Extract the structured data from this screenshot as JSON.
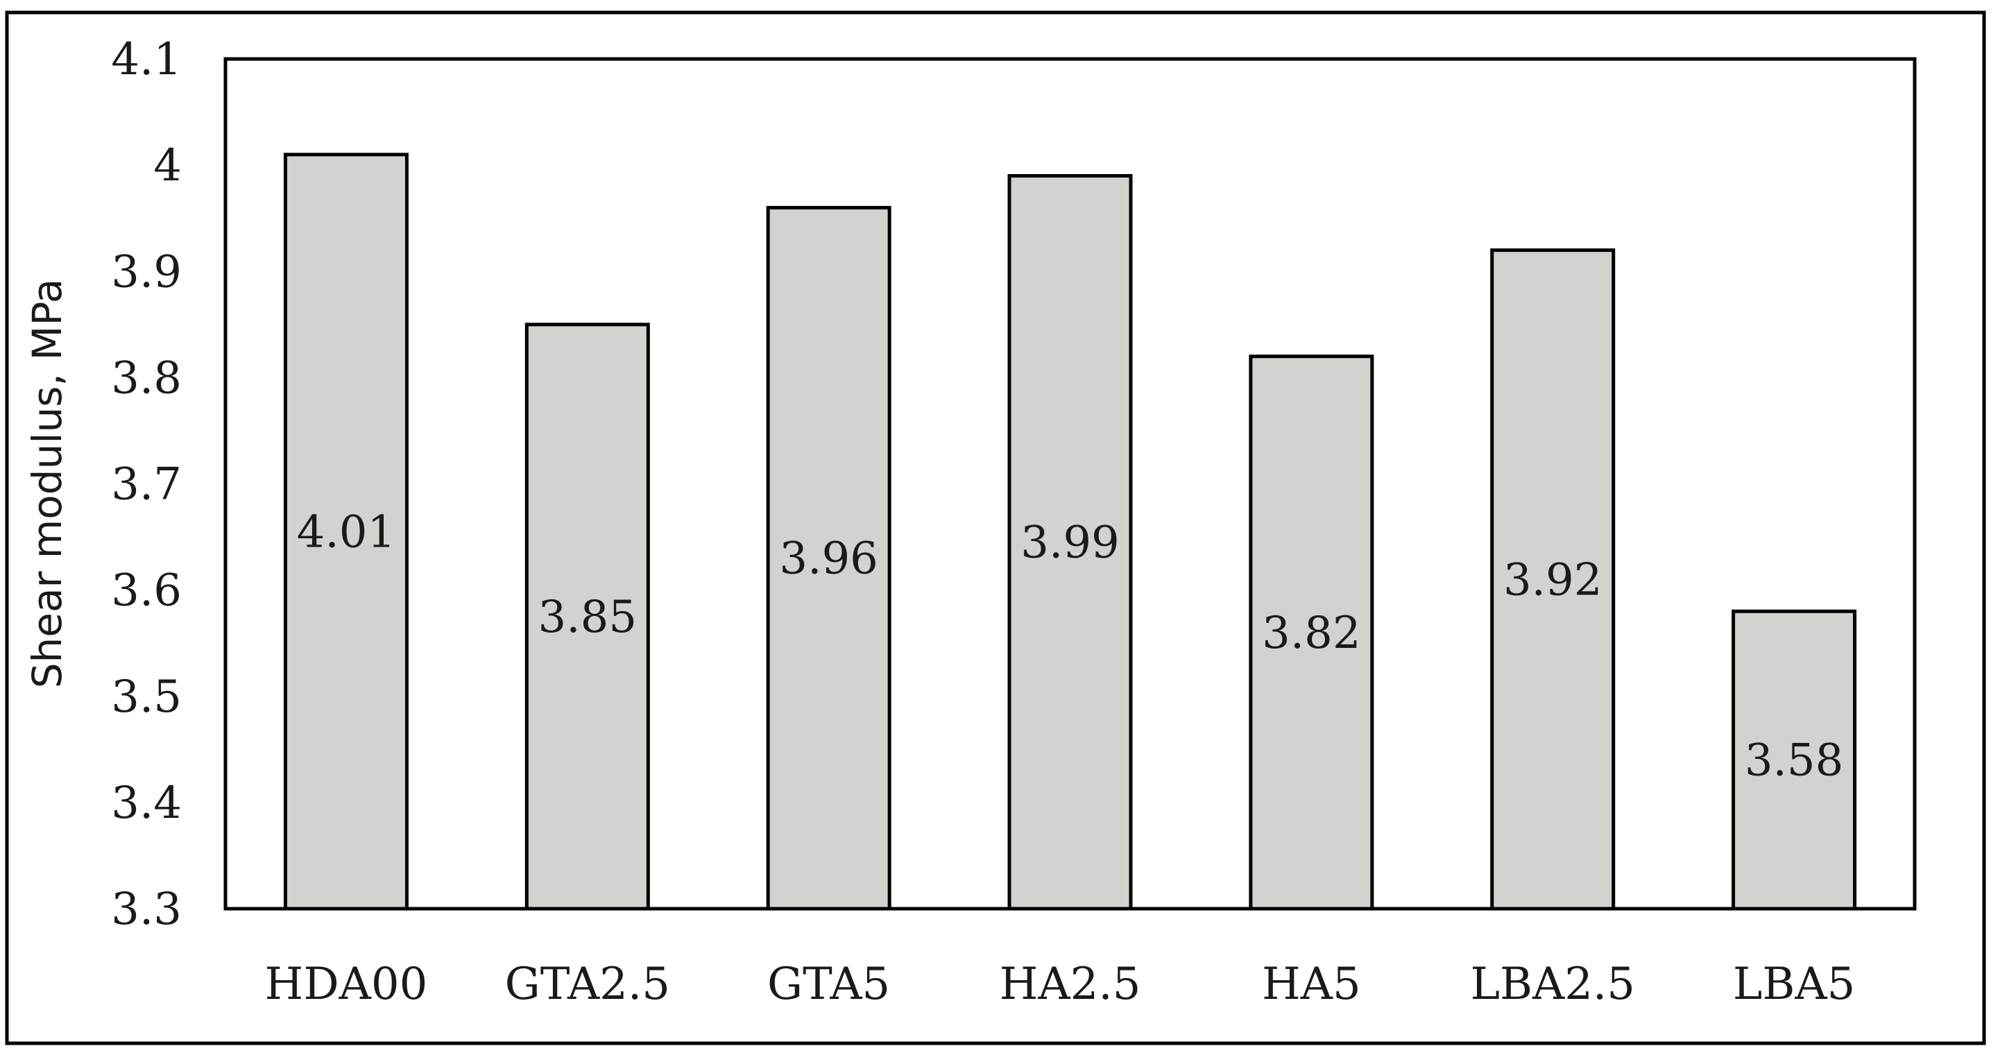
{
  "chart_data": {
    "type": "bar",
    "title": "",
    "xlabel": "",
    "ylabel": "Shear modulus, MPa",
    "categories": [
      "HDA00",
      "GTA2.5",
      "GTA5",
      "HA2.5",
      "HA5",
      "LBA2.5",
      "LBA5"
    ],
    "values": [
      4.01,
      3.85,
      3.96,
      3.99,
      3.82,
      3.92,
      3.58
    ],
    "data_labels": [
      "4.01",
      "3.85",
      "3.96",
      "3.99",
      "3.82",
      "3.92",
      "3.58"
    ],
    "ylim": [
      3.3,
      4.1
    ],
    "yticks": [
      "3.3",
      "3.4",
      "3.5",
      "3.6",
      "3.7",
      "3.8",
      "3.9",
      "4",
      "4.1"
    ],
    "grid": false,
    "legend": "none",
    "colors": {
      "bar_fill": "#d3d2cf",
      "bar_stroke": "#000000",
      "axis": "#000000",
      "frame": "#000000"
    }
  }
}
